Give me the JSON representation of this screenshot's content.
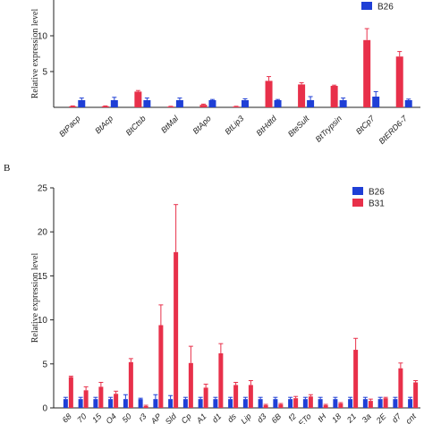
{
  "chart_data": [
    {
      "type": "bar",
      "panel_label": "",
      "ylabel": "Relative expression level",
      "ylim": [
        0,
        15
      ],
      "yticks": [
        5,
        10
      ],
      "categories": [
        "BtPacp",
        "BtAcp",
        "BtCtsb",
        "BtMal",
        "BtApo",
        "BtLip3",
        "BtHdtd",
        "BteSult",
        "BtTrypsin",
        "BtCp7",
        "BtERD6-7"
      ],
      "series": [
        {
          "name": "B26",
          "color": "#1f3fd6",
          "values": [
            1.0,
            1.0,
            1.0,
            1.0,
            1.0,
            1.0,
            1.0,
            1.0,
            1.0,
            1.5,
            1.0
          ],
          "errors": [
            0.3,
            0.4,
            0.3,
            0.3,
            0.1,
            0.2,
            0.1,
            0.5,
            0.3,
            0.7,
            0.15
          ]
        },
        {
          "name": "",
          "color": "#e8304a",
          "values": [
            0.15,
            0.15,
            2.2,
            0.1,
            0.35,
            0.1,
            3.7,
            3.2,
            3.0,
            9.4,
            7.1
          ],
          "errors": [
            0.05,
            0.05,
            0.15,
            0.05,
            0.1,
            0.05,
            0.6,
            0.25,
            0.1,
            1.6,
            0.7
          ]
        }
      ],
      "legend": [
        "B26"
      ],
      "legend_position": "top-right"
    },
    {
      "type": "bar",
      "panel_label": "B",
      "ylabel": "Relative expression level",
      "ylim": [
        0,
        25
      ],
      "yticks": [
        0,
        5,
        10,
        15,
        20,
        25
      ],
      "categories": [
        "68",
        "70",
        "15",
        "O4",
        "50",
        "r3",
        "AP",
        "Sld",
        "Cp",
        "A1",
        "d1",
        "ds",
        "Lip",
        "d3",
        "6B",
        "f2",
        "ETo",
        "tH",
        "18",
        "21",
        "3a",
        "2E",
        "d7",
        "cnt"
      ],
      "series": [
        {
          "name": "B26",
          "color": "#1f3fd6",
          "values": [
            1.0,
            1.0,
            1.0,
            1.0,
            1.0,
            1.0,
            1.0,
            1.0,
            1.0,
            1.0,
            1.0,
            1.0,
            1.0,
            1.0,
            1.0,
            1.0,
            1.0,
            1.0,
            1.0,
            1.0,
            1.0,
            1.0,
            1.0,
            1.0
          ],
          "errors": [
            0.2,
            0.2,
            0.2,
            0.2,
            0.5,
            0.1,
            0.5,
            0.4,
            0.2,
            0.2,
            0.2,
            0.2,
            0.2,
            0.2,
            0.2,
            0.2,
            0.2,
            0.2,
            0.2,
            0.2,
            0.2,
            0.2,
            0.2,
            0.2
          ]
        },
        {
          "name": "B31",
          "color": "#e8304a",
          "values": [
            3.5,
            2.0,
            2.4,
            1.6,
            5.2,
            0.2,
            9.4,
            17.7,
            5.1,
            2.3,
            6.2,
            2.6,
            2.6,
            0.3,
            0.4,
            1.1,
            1.3,
            0.3,
            0.5,
            6.6,
            0.8,
            1.1,
            4.5,
            2.9
          ],
          "errors": [
            0.1,
            0.4,
            0.5,
            0.3,
            0.4,
            0.1,
            2.3,
            5.4,
            1.9,
            0.4,
            1.1,
            0.3,
            0.5,
            0.1,
            0.1,
            0.2,
            0.2,
            0.1,
            0.1,
            1.3,
            0.2,
            0.1,
            0.6,
            0.2
          ]
        }
      ],
      "legend": [
        "B26",
        "B31"
      ],
      "legend_position": "top-right"
    }
  ]
}
